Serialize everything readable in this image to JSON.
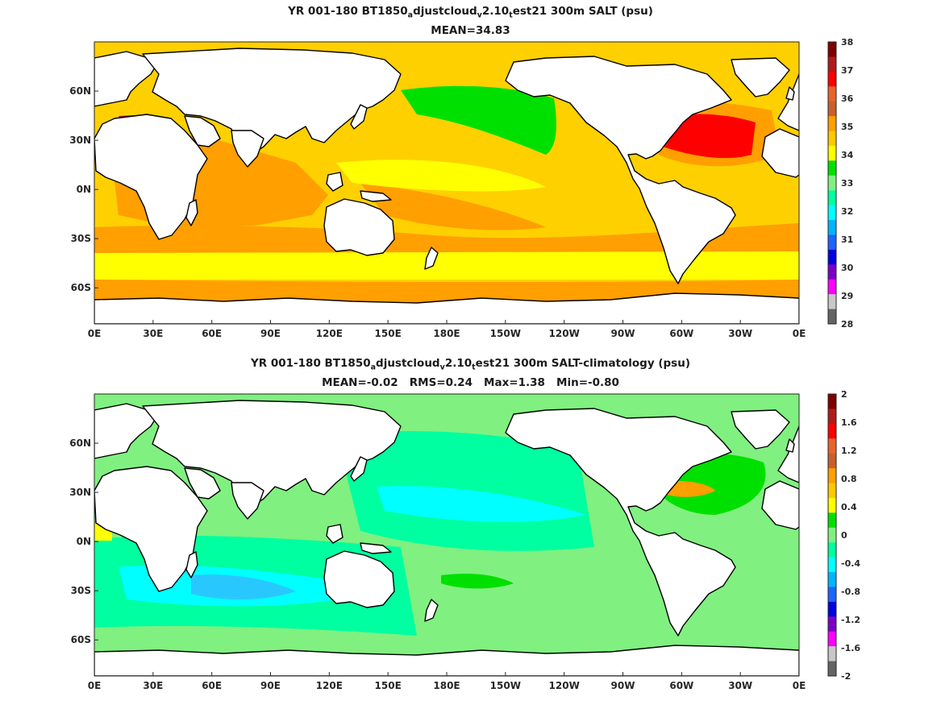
{
  "panels": [
    {
      "title": {
        "pre": "YR 001-180 BT1850",
        "s1": "a",
        "mid1": "djustcloud",
        "s2": "v",
        "mid2": "2.10",
        "s3": "t",
        "post": "est21 300m SALT (psu)"
      },
      "stats": "MEAN=34.83",
      "lat_ticks": [
        "60N",
        "30N",
        "0N",
        "30S",
        "60S"
      ],
      "lon_ticks": [
        "0E",
        "30E",
        "60E",
        "90E",
        "120E",
        "150E",
        "180E",
        "150W",
        "120W",
        "90W",
        "60W",
        "30W",
        "0E"
      ],
      "colorbar": {
        "labels": [
          "38",
          "37",
          "36",
          "35",
          "34",
          "33",
          "32",
          "31",
          "30",
          "29",
          "28"
        ],
        "colors": [
          "#7f0000",
          "#b11a1a",
          "#ff0000",
          "#e8642a",
          "#c8602e",
          "#ff9f00",
          "#ffc800",
          "#ffff00",
          "#00e000",
          "#80f080",
          "#00ffa0",
          "#00ffff",
          "#00b4ff",
          "#1e64ff",
          "#0000e0",
          "#7a00c8",
          "#ff00ff",
          "#c8c8c8",
          "#646464"
        ]
      }
    },
    {
      "title": {
        "pre": "YR 001-180 BT1850",
        "s1": "a",
        "mid1": "djustcloud",
        "s2": "v",
        "mid2": "2.10",
        "s3": "t",
        "post": "est21 300m SALT-climatology (psu)"
      },
      "stats": "MEAN=-0.02   RMS=0.24   Max=1.38   Min=-0.80",
      "lat_ticks": [
        "60N",
        "30N",
        "0N",
        "30S",
        "60S"
      ],
      "lon_ticks": [
        "0E",
        "30E",
        "60E",
        "90E",
        "120E",
        "150E",
        "180E",
        "150W",
        "120W",
        "90W",
        "60W",
        "30W",
        "0E"
      ],
      "colorbar": {
        "labels": [
          "2",
          "1.6",
          "1.2",
          "0.8",
          "0.4",
          "0",
          "-0.4",
          "-0.8",
          "-1.2",
          "-1.6",
          "-2"
        ],
        "colors": [
          "#7f0000",
          "#b11a1a",
          "#ff0000",
          "#e8642a",
          "#c8602e",
          "#ff9f00",
          "#ffc800",
          "#ffff00",
          "#00e000",
          "#80f080",
          "#00ffa0",
          "#00ffff",
          "#00b4ff",
          "#1e64ff",
          "#0000e0",
          "#7a00c8",
          "#ff00ff",
          "#c8c8c8",
          "#646464"
        ]
      }
    }
  ],
  "fill_colors": {
    "ocean_top": "#ffd000",
    "ocean_top_south": "#ffff00",
    "orange": "#ff9f00",
    "red": "#ff0000",
    "dark_red": "#9b1010",
    "brown": "#c8602e",
    "green": "#00e000",
    "ocean_bottom": "#80f080",
    "mint": "#00ffa0",
    "cyan": "#00ffff",
    "blue": "#28c8ff",
    "land": "#ffffff",
    "coast": "#000000"
  }
}
